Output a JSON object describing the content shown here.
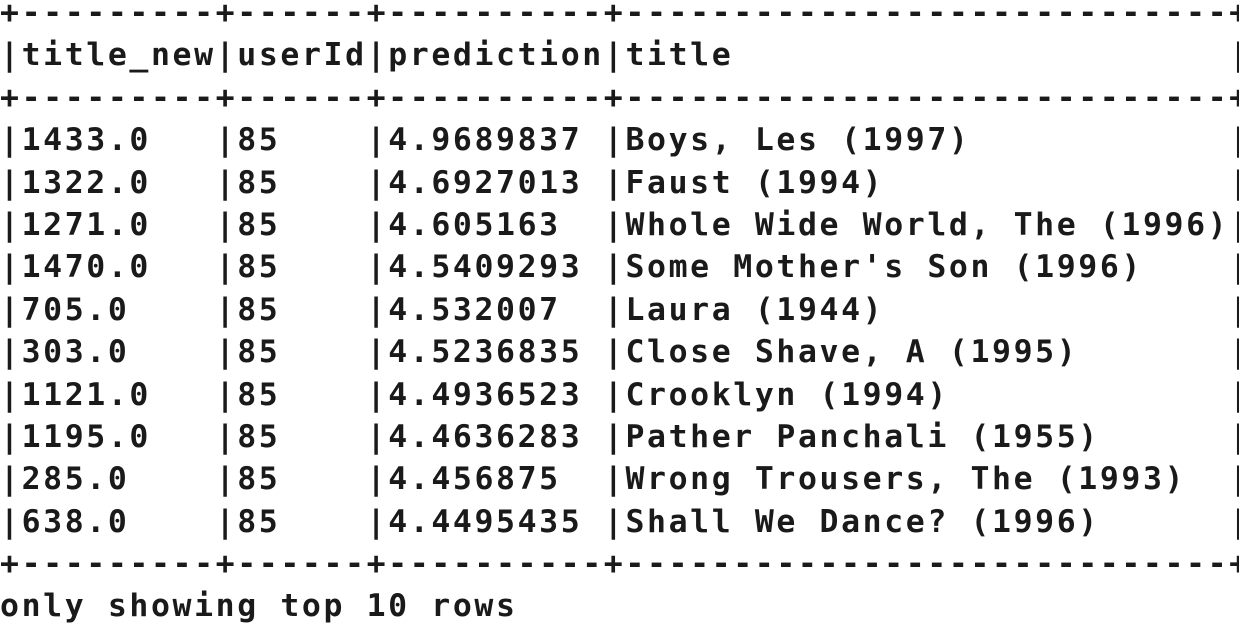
{
  "table": {
    "columns": [
      "title_new",
      "userId",
      "prediction",
      "title"
    ],
    "rows": [
      [
        "1433.0",
        "85",
        "4.9689837",
        "Boys, Les (1997)"
      ],
      [
        "1322.0",
        "85",
        "4.6927013",
        "Faust (1994)"
      ],
      [
        "1271.0",
        "85",
        "4.605163",
        "Whole Wide World, The (1996)"
      ],
      [
        "1470.0",
        "85",
        "4.5409293",
        "Some Mother's Son (1996)"
      ],
      [
        "705.0",
        "85",
        "4.532007",
        "Laura (1944)"
      ],
      [
        "303.0",
        "85",
        "4.5236835",
        "Close Shave, A (1995)"
      ],
      [
        "1121.0",
        "85",
        "4.4936523",
        "Crooklyn (1994)"
      ],
      [
        "1195.0",
        "85",
        "4.4636283",
        "Pather Panchali (1955)"
      ],
      [
        "285.0",
        "85",
        "4.456875",
        "Wrong Trousers, The (1993)"
      ],
      [
        "638.0",
        "85",
        "4.4495435",
        "Shall We Dance? (1996)"
      ]
    ]
  },
  "footer": {
    "message": "only showing top 10 rows"
  }
}
